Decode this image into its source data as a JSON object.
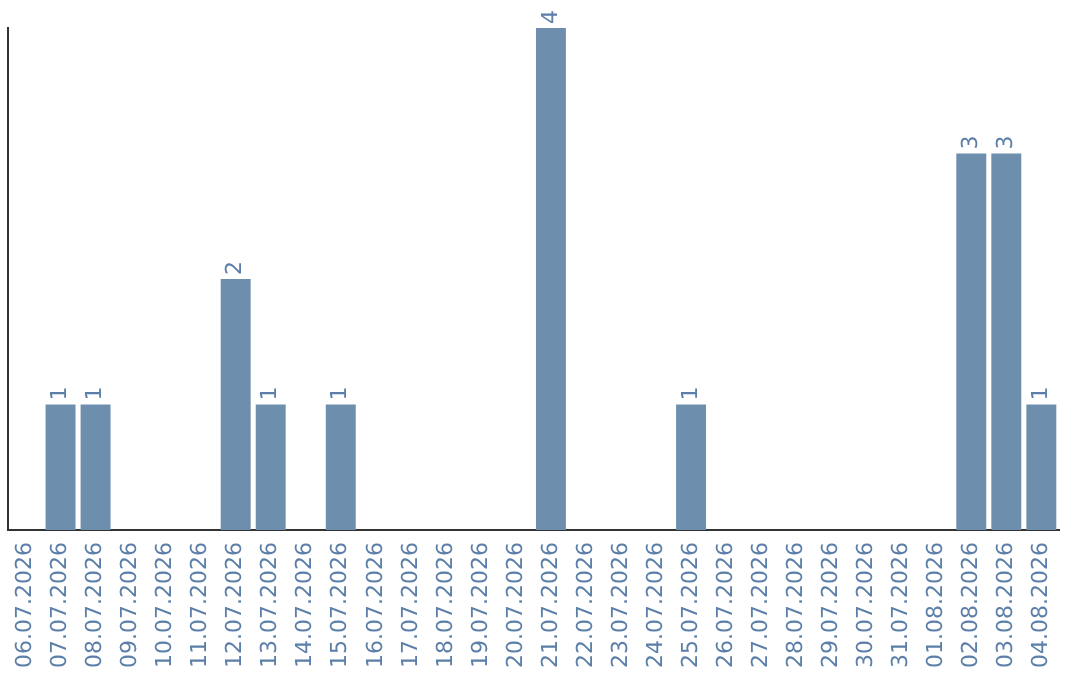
{
  "chart_data": {
    "type": "bar",
    "categories": [
      "06.07.2026",
      "07.07.2026",
      "08.07.2026",
      "09.07.2026",
      "10.07.2026",
      "11.07.2026",
      "12.07.2026",
      "13.07.2026",
      "14.07.2026",
      "15.07.2026",
      "16.07.2026",
      "17.07.2026",
      "18.07.2026",
      "19.07.2026",
      "20.07.2026",
      "21.07.2026",
      "22.07.2026",
      "23.07.2026",
      "24.07.2026",
      "25.07.2026",
      "26.07.2026",
      "27.07.2026",
      "28.07.2026",
      "29.07.2026",
      "30.07.2026",
      "31.07.2026",
      "01.08.2026",
      "02.08.2026",
      "03.08.2026",
      "04.08.2026"
    ],
    "values": [
      0,
      1,
      1,
      0,
      0,
      0,
      2,
      1,
      0,
      1,
      0,
      0,
      0,
      0,
      0,
      4,
      0,
      0,
      0,
      1,
      0,
      0,
      0,
      0,
      0,
      0,
      0,
      3,
      3,
      1
    ],
    "value_labels": [
      null,
      "1",
      "1",
      null,
      null,
      null,
      "2",
      "1",
      null,
      "1",
      null,
      null,
      null,
      null,
      null,
      "4",
      null,
      null,
      null,
      "1",
      null,
      null,
      null,
      null,
      null,
      null,
      null,
      "3",
      "3",
      "1"
    ],
    "color": "#6d8fad",
    "grid": false
  }
}
